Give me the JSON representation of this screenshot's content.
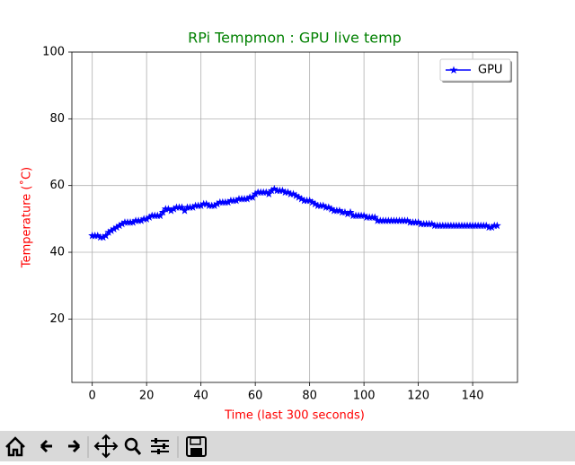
{
  "chart_data": {
    "type": "line",
    "title": "RPi Tempmon : GPU live temp",
    "x_label": "Time (last 300 seconds)",
    "y_label": "Temperature (˚C)",
    "x": [
      0,
      1,
      2,
      3,
      4,
      5,
      6,
      7,
      8,
      9,
      10,
      11,
      12,
      13,
      14,
      15,
      16,
      17,
      18,
      19,
      20,
      21,
      22,
      23,
      24,
      25,
      26,
      27,
      28,
      29,
      30,
      31,
      32,
      33,
      34,
      35,
      36,
      37,
      38,
      39,
      40,
      41,
      42,
      43,
      44,
      45,
      46,
      47,
      48,
      49,
      50,
      51,
      52,
      53,
      54,
      55,
      56,
      57,
      58,
      59,
      60,
      61,
      62,
      63,
      64,
      65,
      66,
      67,
      68,
      69,
      70,
      71,
      72,
      73,
      74,
      75,
      76,
      77,
      78,
      79,
      80,
      81,
      82,
      83,
      84,
      85,
      86,
      87,
      88,
      89,
      90,
      91,
      92,
      93,
      94,
      95,
      96,
      97,
      98,
      99,
      100,
      101,
      102,
      103,
      104,
      105,
      106,
      107,
      108,
      109,
      110,
      111,
      112,
      113,
      114,
      115,
      116,
      117,
      118,
      119,
      120,
      121,
      122,
      123,
      124,
      125,
      126,
      127,
      128,
      129,
      130,
      131,
      132,
      133,
      134,
      135,
      136,
      137,
      138,
      139,
      140,
      141,
      142,
      143,
      144,
      145,
      146,
      147,
      148,
      149
    ],
    "series": [
      {
        "name": "GPU",
        "color": "#0000ff",
        "values": [
          45,
          45,
          45,
          44.5,
          44.5,
          45,
          46,
          46.5,
          47,
          47.5,
          48,
          48.5,
          49,
          49,
          49,
          49,
          49.5,
          49.5,
          49.5,
          50,
          50,
          50.5,
          51,
          51,
          51,
          51,
          52,
          53,
          53,
          52.5,
          53,
          53.5,
          53.5,
          53.5,
          52.5,
          53.5,
          53.5,
          53.5,
          54,
          54,
          54,
          54.5,
          54.5,
          54,
          54,
          54,
          54.5,
          55,
          55,
          55,
          55,
          55.5,
          55.5,
          55.5,
          56,
          56,
          56,
          56,
          56.5,
          56.5,
          57.5,
          58,
          58,
          58,
          58,
          57.5,
          58.5,
          59,
          58.5,
          58.5,
          58.5,
          58,
          58,
          57.5,
          57.5,
          57,
          56.5,
          56,
          55.5,
          55.5,
          55.5,
          55,
          54.5,
          54,
          54,
          54,
          53.5,
          53.5,
          53,
          52.5,
          52.5,
          52.5,
          52,
          52,
          51.5,
          52,
          51,
          51,
          51,
          51,
          51,
          50.5,
          50.5,
          50.5,
          50.5,
          49.5,
          49.5,
          49.5,
          49.5,
          49.5,
          49.5,
          49.5,
          49.5,
          49.5,
          49.5,
          49.5,
          49.5,
          49,
          49,
          49,
          49,
          48.5,
          48.5,
          48.5,
          48.5,
          48.5,
          48,
          48,
          48,
          48,
          48,
          48,
          48,
          48,
          48,
          48,
          48,
          48,
          48,
          48,
          48,
          48,
          48,
          48,
          48,
          48,
          47.5,
          47.5,
          48,
          48
        ]
      }
    ],
    "xlim": [
      -7.5,
      156.5
    ],
    "ylim": [
      1,
      100
    ],
    "xticks": [
      0,
      20,
      40,
      60,
      80,
      100,
      120,
      140
    ],
    "yticks": [
      20,
      40,
      60,
      80,
      100
    ],
    "grid": true,
    "legend": "upper right"
  }
}
